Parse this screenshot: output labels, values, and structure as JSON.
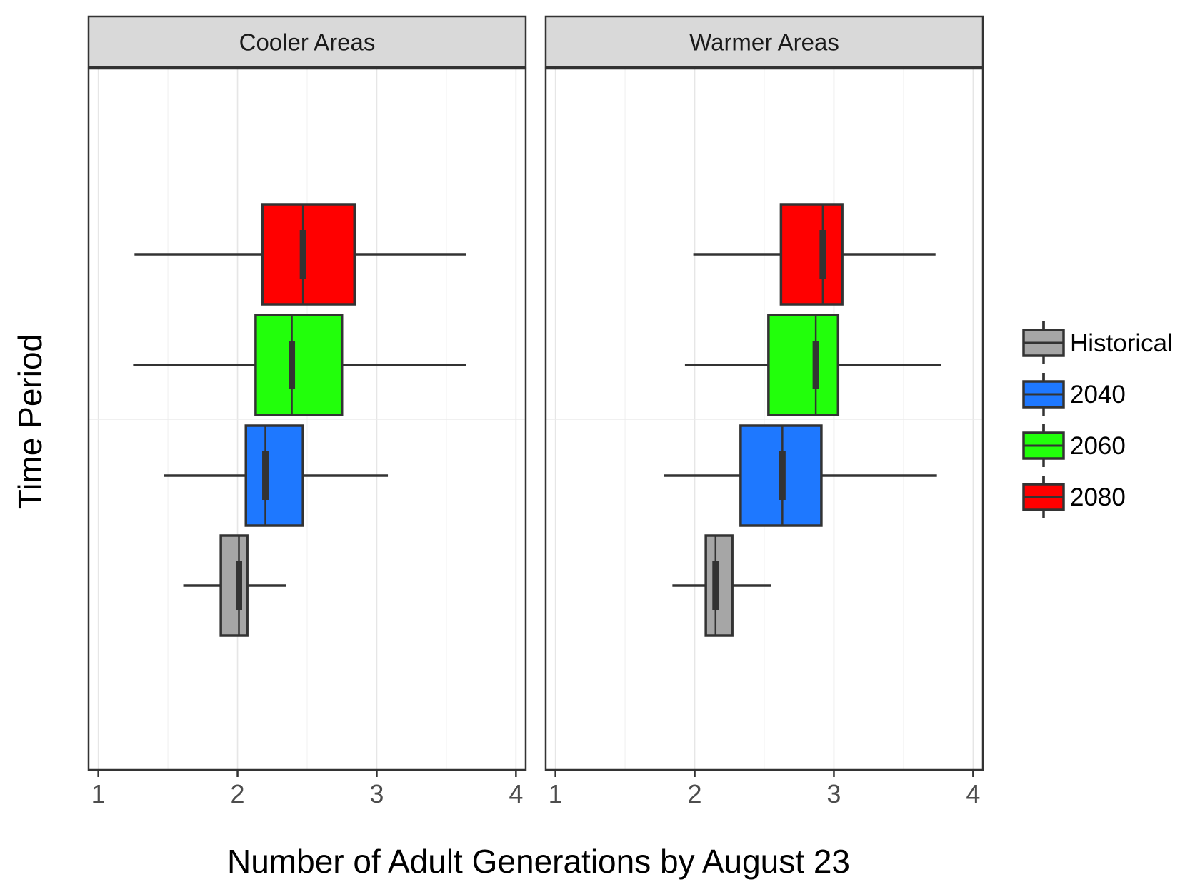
{
  "chart_data": {
    "type": "boxplot",
    "orientation": "horizontal",
    "facet_labels": [
      "Cooler Areas",
      "Warmer Areas"
    ],
    "xlabel": "Number of Adult Generations by August 23",
    "ylabel": "Time Period",
    "xlim": [
      0.93,
      4.07
    ],
    "x_ticks": [
      1,
      2,
      3,
      4
    ],
    "grid": true,
    "notched": true,
    "legend_position": "right",
    "legend": [
      {
        "name": "Historical",
        "color": "#A6A6A6"
      },
      {
        "name": "2040",
        "color": "#1E78FF"
      },
      {
        "name": "2060",
        "color": "#22FF0B"
      },
      {
        "name": "2080",
        "color": "#FF0000"
      }
    ],
    "facets": [
      {
        "name": "Cooler Areas",
        "boxes": [
          {
            "series": "Historical",
            "min": 1.61,
            "q1": 1.88,
            "median": 2.01,
            "q3": 2.07,
            "max": 2.35
          },
          {
            "series": "2040",
            "min": 1.47,
            "q1": 2.06,
            "median": 2.2,
            "q3": 2.47,
            "max": 3.08
          },
          {
            "series": "2060",
            "min": 1.25,
            "q1": 2.13,
            "median": 2.39,
            "q3": 2.75,
            "max": 3.64
          },
          {
            "series": "2080",
            "min": 1.26,
            "q1": 2.18,
            "median": 2.47,
            "q3": 2.84,
            "max": 3.64
          }
        ]
      },
      {
        "name": "Warmer Areas",
        "boxes": [
          {
            "series": "Historical",
            "min": 1.84,
            "q1": 2.08,
            "median": 2.15,
            "q3": 2.27,
            "max": 2.55
          },
          {
            "series": "2040",
            "min": 1.78,
            "q1": 2.33,
            "median": 2.63,
            "q3": 2.91,
            "max": 3.74
          },
          {
            "series": "2060",
            "min": 1.93,
            "q1": 2.53,
            "median": 2.87,
            "q3": 3.03,
            "max": 3.77
          },
          {
            "series": "2080",
            "min": 1.99,
            "q1": 2.62,
            "median": 2.92,
            "q3": 3.06,
            "max": 3.73
          }
        ]
      }
    ]
  }
}
